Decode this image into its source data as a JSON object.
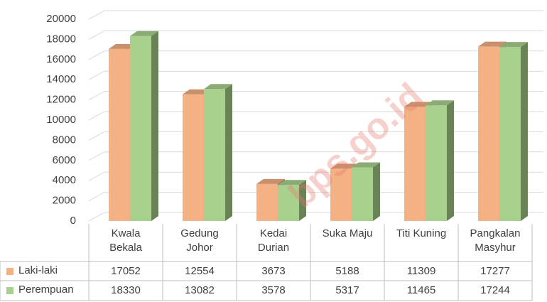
{
  "chart_data": {
    "type": "bar3d",
    "categories": [
      "Kwala Bekala",
      "Gedung Johor",
      "Kedai Durian",
      "Suka Maju",
      "Titi Kuning",
      "Pangkalan Masyhur"
    ],
    "series": [
      {
        "name": "Laki-laki",
        "color": "#f4b183",
        "values": [
          17052,
          12554,
          3673,
          5188,
          11309,
          17277
        ]
      },
      {
        "name": "Perempuan",
        "color": "#a9d18e",
        "values": [
          18330,
          13082,
          3578,
          5317,
          11465,
          17244
        ]
      }
    ],
    "ylim": [
      0,
      20000
    ],
    "yticks": [
      0,
      2000,
      4000,
      6000,
      8000,
      10000,
      12000,
      14000,
      16000,
      18000,
      20000
    ],
    "grid": true,
    "watermark": "bps.go.id"
  }
}
